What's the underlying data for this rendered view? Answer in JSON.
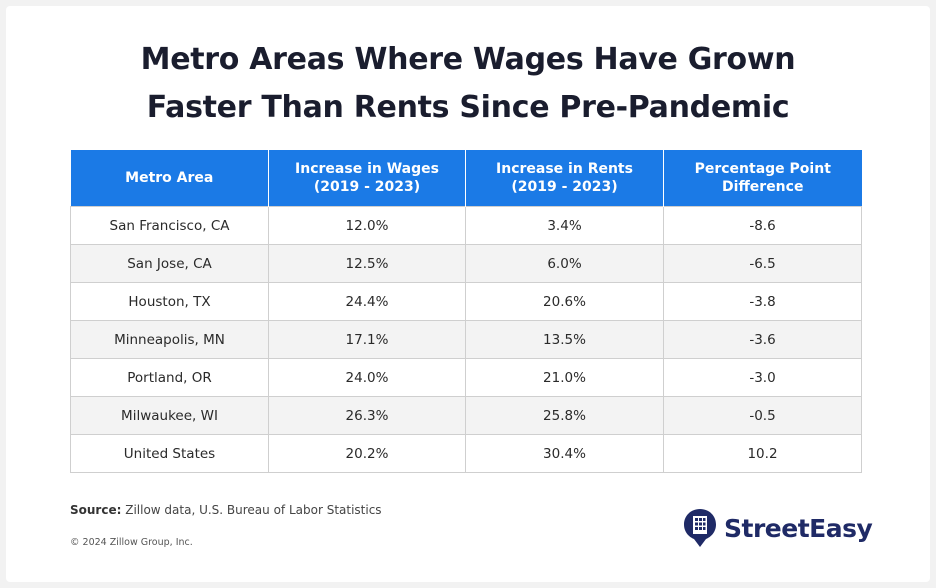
{
  "title_lines": [
    "Metro Areas Where Wages Have Grown",
    "Faster Than Rents Since Pre-Pandemic"
  ],
  "chart_data": {
    "type": "table",
    "title": "Metro Areas Where Wages Have Grown Faster Than Rents Since Pre-Pandemic",
    "columns": [
      {
        "lines": [
          "Metro Area"
        ]
      },
      {
        "lines": [
          "Increase in Wages",
          "(2019 - 2023)"
        ]
      },
      {
        "lines": [
          "Increase in Rents",
          "(2019 - 2023)"
        ]
      },
      {
        "lines": [
          "Percentage Point",
          "Difference"
        ]
      }
    ],
    "rows": [
      [
        "San Francisco, CA",
        "12.0%",
        "3.4%",
        "-8.6"
      ],
      [
        "San Jose, CA",
        "12.5%",
        "6.0%",
        "-6.5"
      ],
      [
        "Houston, TX",
        "24.4%",
        "20.6%",
        "-3.8"
      ],
      [
        "Minneapolis, MN",
        "17.1%",
        "13.5%",
        "-3.6"
      ],
      [
        "Portland, OR",
        "24.0%",
        "21.0%",
        "-3.0"
      ],
      [
        "Milwaukee, WI",
        "26.3%",
        "25.8%",
        "-0.5"
      ],
      [
        "United States",
        "20.2%",
        "30.4%",
        "10.2"
      ]
    ]
  },
  "footer": {
    "source_label": "Source:",
    "source_text": " Zillow data, U.S. Bureau of Labor Statistics",
    "copyright": "© 2024 Zillow Group, Inc.",
    "brand_name": "StreetEasy",
    "brand_icon": "building-pin-icon"
  },
  "colors": {
    "header_bg": "#1b7ae6",
    "header_text": "#ffffff",
    "title_text": "#1a1d2e",
    "brand": "#1f2a66"
  }
}
